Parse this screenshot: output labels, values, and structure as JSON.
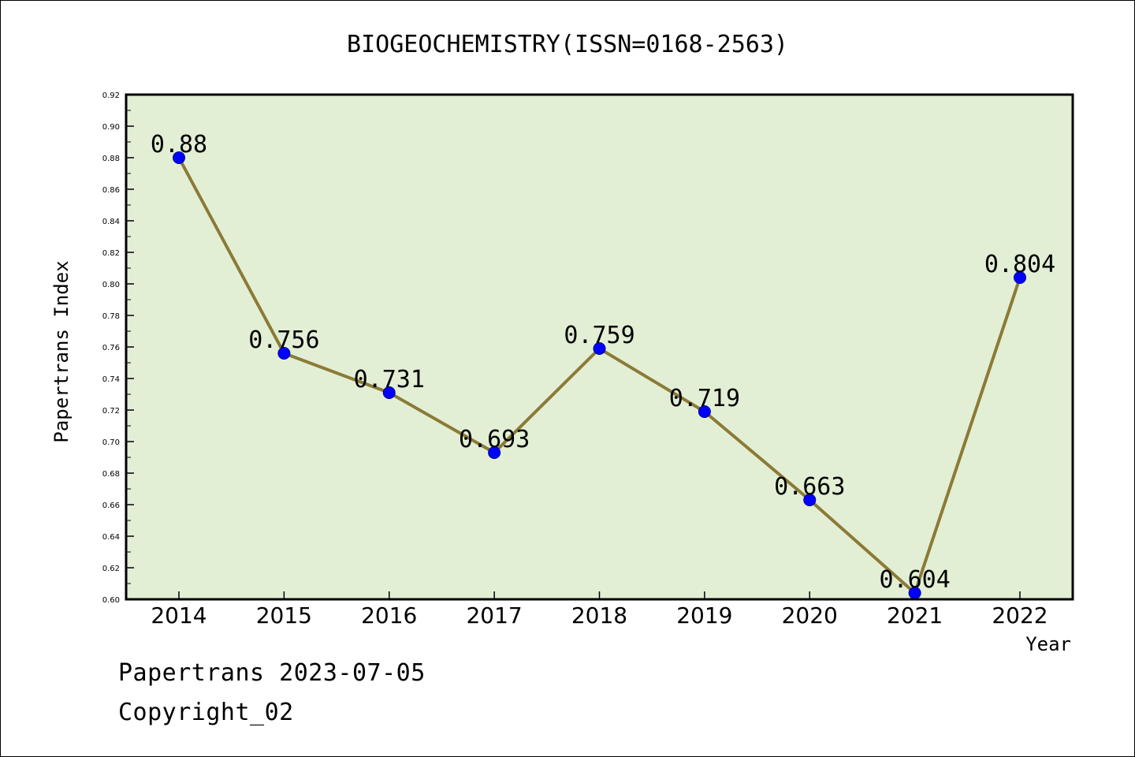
{
  "chart_data": {
    "type": "line",
    "title": "BIOGEOCHEMISTRY(ISSN=0168-2563)",
    "xlabel": "Year",
    "ylabel": "Papertrans Index",
    "categories": [
      "2014",
      "2015",
      "2016",
      "2017",
      "2018",
      "2019",
      "2020",
      "2021",
      "2022"
    ],
    "series": [
      {
        "values": [
          0.88,
          0.756,
          0.731,
          0.693,
          0.759,
          0.719,
          0.663,
          0.604,
          0.804
        ]
      }
    ],
    "data_labels": [
      "0.88",
      "0.756",
      "0.731",
      "0.693",
      "0.759",
      "0.719",
      "0.663",
      "0.604",
      "0.804"
    ],
    "ylim": [
      0.6,
      0.92
    ],
    "yticks": [
      "0.60",
      "0.62",
      "0.64",
      "0.66",
      "0.68",
      "0.70",
      "0.72",
      "0.74",
      "0.76",
      "0.78",
      "0.80",
      "0.82",
      "0.84",
      "0.86",
      "0.88",
      "0.90",
      "0.92"
    ],
    "grid": false,
    "colors": {
      "plot_background": "#e2efd5",
      "line": "#8b7a36",
      "marker": "#0000ff"
    }
  },
  "footer": {
    "line1": "Papertrans 2023-07-05",
    "line2": "Copyright_02"
  }
}
